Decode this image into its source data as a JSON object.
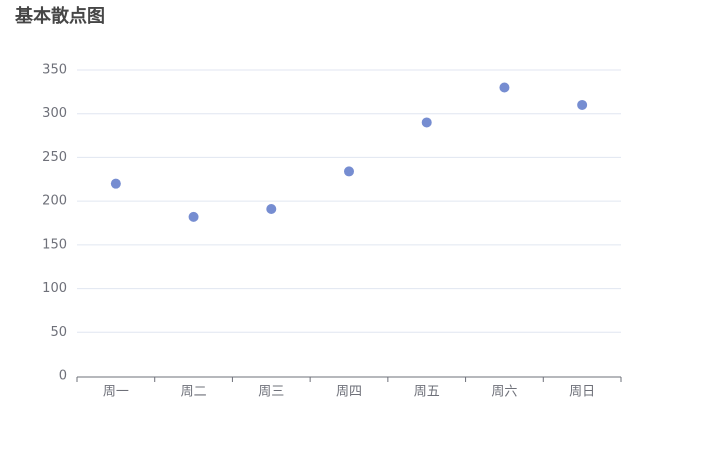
{
  "chart_data": {
    "type": "scatter",
    "title": "基本散点图",
    "categories": [
      "周一",
      "周二",
      "周三",
      "周四",
      "周五",
      "周六",
      "周日"
    ],
    "values": [
      220,
      182,
      191,
      234,
      290,
      330,
      310
    ],
    "color": "#5470c6",
    "ylim": [
      0,
      350
    ],
    "yticks": [
      0,
      50,
      100,
      150,
      200,
      250,
      300,
      350
    ],
    "grid": true
  }
}
